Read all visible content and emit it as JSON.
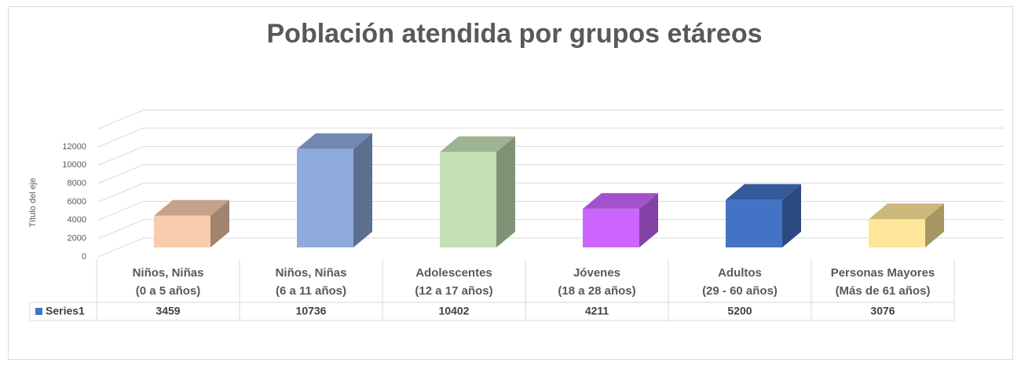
{
  "chart_data": {
    "type": "bar3d",
    "title": "Población atendida por grupos etáreos",
    "y_axis_label": "Título del eje",
    "categories": [
      [
        "Niños, Niñas",
        "(0 a 5 años)"
      ],
      [
        "Niños, Niñas",
        "(6 a 11 años)"
      ],
      [
        "Adolescentes",
        "(12 a 17 años)"
      ],
      [
        "Jóvenes",
        "(18 a 28 años)"
      ],
      [
        "Adultos",
        "(29 - 60 años)"
      ],
      [
        "Personas Mayores",
        "(Más de 61 años)"
      ]
    ],
    "series": [
      {
        "name": "Series1",
        "color": "#4472c4",
        "values": [
          3459,
          10736,
          10402,
          4211,
          5200,
          3076
        ]
      }
    ],
    "bar_colors": [
      "#f8cbad",
      "#8faadc",
      "#c5e0b4",
      "#cc66ff",
      "#4472c4",
      "#ffe699"
    ],
    "ylim": [
      0,
      12000
    ],
    "yticks": [
      0,
      2000,
      4000,
      6000,
      8000,
      10000,
      12000
    ],
    "grid": true
  }
}
